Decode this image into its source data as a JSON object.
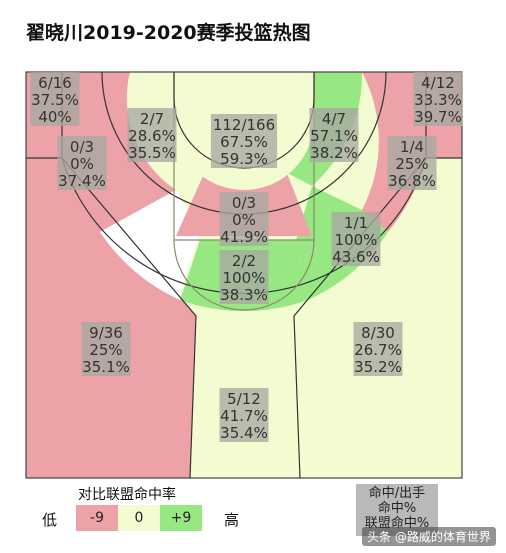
{
  "title": "翟晓川2019-2020赛季投篮热图",
  "colors": {
    "above": "#97e882",
    "even": "#f3fcd0",
    "below": "#eda2a8",
    "white": "#ffffff",
    "label_box": "#a8a8a0"
  },
  "legend": {
    "title": "对比联盟命中率",
    "low": "低",
    "high": "高",
    "items": [
      {
        "label": "-9",
        "color": "#eda2a8"
      },
      {
        "label": "0",
        "color": "#f3fcd0"
      },
      {
        "label": "+9",
        "color": "#97e882"
      }
    ]
  },
  "key": {
    "line1": "命中/出手",
    "line2": "命中%",
    "line3": "联盟命中%"
  },
  "watermark": "头条 @路威的体育世界",
  "chart_data": {
    "type": "heatmap",
    "zones": [
      {
        "zone": "left corner three",
        "made_attempts": "6/16",
        "fg_pct": "37.5%",
        "league_pct": "40%"
      },
      {
        "zone": "left wing mid-range",
        "made_attempts": "2/7",
        "fg_pct": "28.6%",
        "league_pct": "35.5%"
      },
      {
        "zone": "restricted area",
        "made_attempts": "112/166",
        "fg_pct": "67.5%",
        "league_pct": "59.3%"
      },
      {
        "zone": "right wing mid-range",
        "made_attempts": "4/7",
        "fg_pct": "57.1%",
        "league_pct": "38.2%"
      },
      {
        "zone": "right corner three",
        "made_attempts": "4/12",
        "fg_pct": "33.3%",
        "league_pct": "39.7%"
      },
      {
        "zone": "left baseline mid-range",
        "made_attempts": "0/3",
        "fg_pct": "0%",
        "league_pct": "37.4%"
      },
      {
        "zone": "right baseline mid-range",
        "made_attempts": "1/4",
        "fg_pct": "25%",
        "league_pct": "36.8%"
      },
      {
        "zone": "paint (non-RA)",
        "made_attempts": "0/3",
        "fg_pct": "0%",
        "league_pct": "41.9%"
      },
      {
        "zone": "right elbow mid-range",
        "made_attempts": "1/1",
        "fg_pct": "100%",
        "league_pct": "43.6%"
      },
      {
        "zone": "top of key mid-range",
        "made_attempts": "2/2",
        "fg_pct": "100%",
        "league_pct": "38.3%"
      },
      {
        "zone": "left wing three",
        "made_attempts": "9/36",
        "fg_pct": "25%",
        "league_pct": "35.1%"
      },
      {
        "zone": "right wing three",
        "made_attempts": "8/30",
        "fg_pct": "26.7%",
        "league_pct": "35.2%"
      },
      {
        "zone": "top of key three",
        "made_attempts": "5/12",
        "fg_pct": "41.7%",
        "league_pct": "35.4%"
      }
    ]
  }
}
